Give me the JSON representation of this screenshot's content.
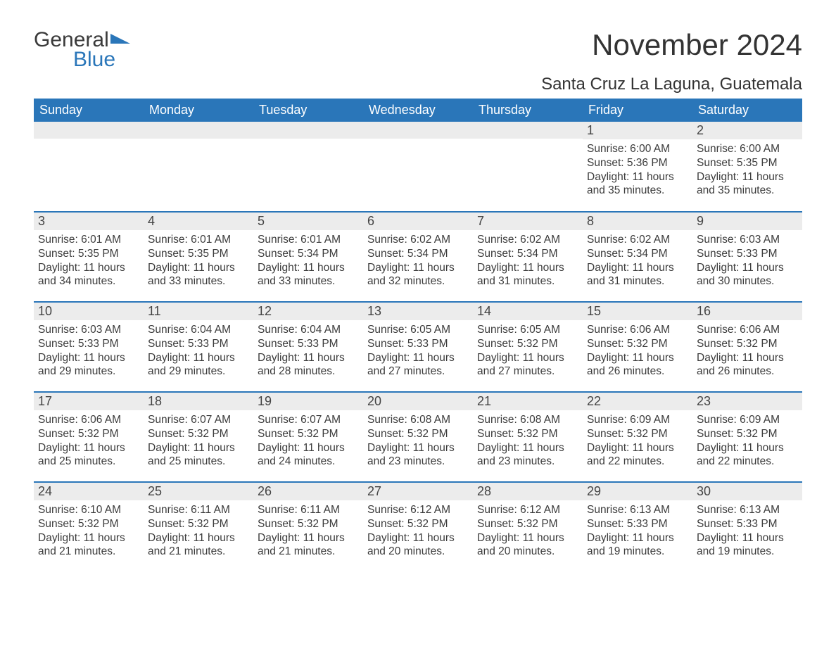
{
  "logo": {
    "general": "General",
    "blue": "Blue"
  },
  "header": {
    "month_title": "November 2024",
    "location": "Santa Cruz La Laguna, Guatemala"
  },
  "weekdays": [
    "Sunday",
    "Monday",
    "Tuesday",
    "Wednesday",
    "Thursday",
    "Friday",
    "Saturday"
  ],
  "colors": {
    "accent": "#2a76b9",
    "header_text": "#ffffff",
    "daynum_bg": "#ececec",
    "body_text": "#3c3c3c",
    "page_bg": "#ffffff"
  },
  "layout": {
    "first_weekday_index": 5,
    "days_in_month": 30
  },
  "labels": {
    "sunrise_prefix": "Sunrise: ",
    "sunset_prefix": "Sunset: ",
    "daylight_prefix": "Daylight: ",
    "daylight_hours_word": " hours",
    "daylight_and": "and ",
    "daylight_minutes_suffix": " minutes."
  },
  "days": [
    {
      "n": 1,
      "sunrise": "6:00 AM",
      "sunset": "5:36 PM",
      "dl_h": 11,
      "dl_m": 35
    },
    {
      "n": 2,
      "sunrise": "6:00 AM",
      "sunset": "5:35 PM",
      "dl_h": 11,
      "dl_m": 35
    },
    {
      "n": 3,
      "sunrise": "6:01 AM",
      "sunset": "5:35 PM",
      "dl_h": 11,
      "dl_m": 34
    },
    {
      "n": 4,
      "sunrise": "6:01 AM",
      "sunset": "5:35 PM",
      "dl_h": 11,
      "dl_m": 33
    },
    {
      "n": 5,
      "sunrise": "6:01 AM",
      "sunset": "5:34 PM",
      "dl_h": 11,
      "dl_m": 33
    },
    {
      "n": 6,
      "sunrise": "6:02 AM",
      "sunset": "5:34 PM",
      "dl_h": 11,
      "dl_m": 32
    },
    {
      "n": 7,
      "sunrise": "6:02 AM",
      "sunset": "5:34 PM",
      "dl_h": 11,
      "dl_m": 31
    },
    {
      "n": 8,
      "sunrise": "6:02 AM",
      "sunset": "5:34 PM",
      "dl_h": 11,
      "dl_m": 31
    },
    {
      "n": 9,
      "sunrise": "6:03 AM",
      "sunset": "5:33 PM",
      "dl_h": 11,
      "dl_m": 30
    },
    {
      "n": 10,
      "sunrise": "6:03 AM",
      "sunset": "5:33 PM",
      "dl_h": 11,
      "dl_m": 29
    },
    {
      "n": 11,
      "sunrise": "6:04 AM",
      "sunset": "5:33 PM",
      "dl_h": 11,
      "dl_m": 29
    },
    {
      "n": 12,
      "sunrise": "6:04 AM",
      "sunset": "5:33 PM",
      "dl_h": 11,
      "dl_m": 28
    },
    {
      "n": 13,
      "sunrise": "6:05 AM",
      "sunset": "5:33 PM",
      "dl_h": 11,
      "dl_m": 27
    },
    {
      "n": 14,
      "sunrise": "6:05 AM",
      "sunset": "5:32 PM",
      "dl_h": 11,
      "dl_m": 27
    },
    {
      "n": 15,
      "sunrise": "6:06 AM",
      "sunset": "5:32 PM",
      "dl_h": 11,
      "dl_m": 26
    },
    {
      "n": 16,
      "sunrise": "6:06 AM",
      "sunset": "5:32 PM",
      "dl_h": 11,
      "dl_m": 26
    },
    {
      "n": 17,
      "sunrise": "6:06 AM",
      "sunset": "5:32 PM",
      "dl_h": 11,
      "dl_m": 25
    },
    {
      "n": 18,
      "sunrise": "6:07 AM",
      "sunset": "5:32 PM",
      "dl_h": 11,
      "dl_m": 25
    },
    {
      "n": 19,
      "sunrise": "6:07 AM",
      "sunset": "5:32 PM",
      "dl_h": 11,
      "dl_m": 24
    },
    {
      "n": 20,
      "sunrise": "6:08 AM",
      "sunset": "5:32 PM",
      "dl_h": 11,
      "dl_m": 23
    },
    {
      "n": 21,
      "sunrise": "6:08 AM",
      "sunset": "5:32 PM",
      "dl_h": 11,
      "dl_m": 23
    },
    {
      "n": 22,
      "sunrise": "6:09 AM",
      "sunset": "5:32 PM",
      "dl_h": 11,
      "dl_m": 22
    },
    {
      "n": 23,
      "sunrise": "6:09 AM",
      "sunset": "5:32 PM",
      "dl_h": 11,
      "dl_m": 22
    },
    {
      "n": 24,
      "sunrise": "6:10 AM",
      "sunset": "5:32 PM",
      "dl_h": 11,
      "dl_m": 21
    },
    {
      "n": 25,
      "sunrise": "6:11 AM",
      "sunset": "5:32 PM",
      "dl_h": 11,
      "dl_m": 21
    },
    {
      "n": 26,
      "sunrise": "6:11 AM",
      "sunset": "5:32 PM",
      "dl_h": 11,
      "dl_m": 21
    },
    {
      "n": 27,
      "sunrise": "6:12 AM",
      "sunset": "5:32 PM",
      "dl_h": 11,
      "dl_m": 20
    },
    {
      "n": 28,
      "sunrise": "6:12 AM",
      "sunset": "5:32 PM",
      "dl_h": 11,
      "dl_m": 20
    },
    {
      "n": 29,
      "sunrise": "6:13 AM",
      "sunset": "5:33 PM",
      "dl_h": 11,
      "dl_m": 19
    },
    {
      "n": 30,
      "sunrise": "6:13 AM",
      "sunset": "5:33 PM",
      "dl_h": 11,
      "dl_m": 19
    }
  ]
}
